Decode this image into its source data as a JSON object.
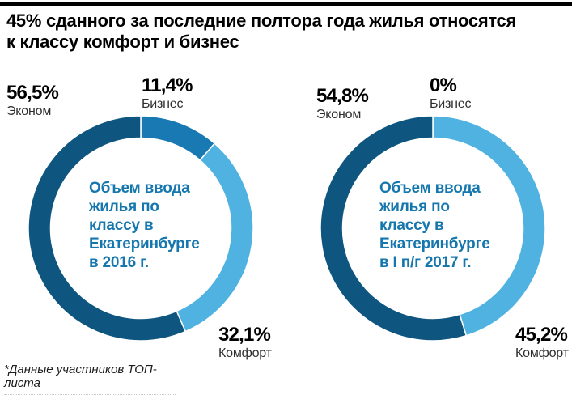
{
  "page": {
    "title": "45% сданного за последние полтора года жилья относятся\nк классу комфорт и бизнес",
    "footnote": "*Данные участников ТОП-листа"
  },
  "colors": {
    "econom": "#0e567f",
    "business": "#1879b3",
    "comfort": "#4fb2e1",
    "center_text": "#1577ad",
    "title_text": "#000000",
    "top_rule": "#000000"
  },
  "chart_data": [
    {
      "type": "pie",
      "subtype": "donut",
      "title": "Объем ввода\nжилья по\nклассу в\nЕкатеринбурге\nв 2016 г.",
      "start_angle_deg": 0,
      "direction": "clockwise",
      "inner_radius_ratio": 0.8,
      "segments": [
        {
          "key": "business",
          "label": "Бизнес",
          "value": 11.4,
          "display": "11,4%",
          "color": "#1879b3"
        },
        {
          "key": "comfort",
          "label": "Комфорт",
          "value": 32.1,
          "display": "32,1%",
          "color": "#4fb2e1"
        },
        {
          "key": "econom",
          "label": "Эконом",
          "value": 56.5,
          "display": "56,5%",
          "color": "#0e567f"
        }
      ]
    },
    {
      "type": "pie",
      "subtype": "donut",
      "title": "Объем ввода\nжилья по\nклассу в\nЕкатеринбурге\nв I п/г 2017 г.",
      "start_angle_deg": 0,
      "direction": "clockwise",
      "inner_radius_ratio": 0.8,
      "segments": [
        {
          "key": "business",
          "label": "Бизнес",
          "value": 0,
          "display": "0%",
          "color": "#1879b3"
        },
        {
          "key": "comfort",
          "label": "Комфорт",
          "value": 45.2,
          "display": "45,2%",
          "color": "#4fb2e1"
        },
        {
          "key": "econom",
          "label": "Эконом",
          "value": 54.8,
          "display": "54,8%",
          "color": "#0e567f"
        }
      ]
    }
  ]
}
